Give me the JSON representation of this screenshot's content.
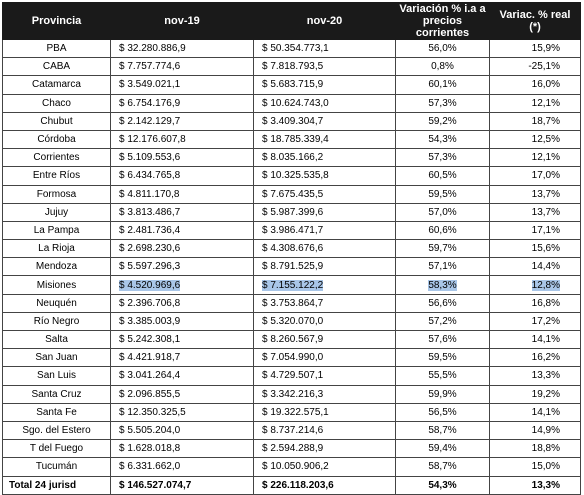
{
  "headers": [
    "Provincia",
    "nov-19",
    "nov-20",
    "Variación % i.a a precios corrientes",
    "Variac. % real (*)"
  ],
  "rows": [
    [
      "PBA",
      "$ 32.280.886,9",
      "$ 50.354.773,1",
      "56,0%",
      "15,9%"
    ],
    [
      "CABA",
      "$ 7.757.774,6",
      "$ 7.818.793,5",
      "0,8%",
      "-25,1%"
    ],
    [
      "Catamarca",
      "$ 3.549.021,1",
      "$ 5.683.715,9",
      "60,1%",
      "16,0%"
    ],
    [
      "Chaco",
      "$ 6.754.176,9",
      "$ 10.624.743,0",
      "57,3%",
      "12,1%"
    ],
    [
      "Chubut",
      "$ 2.142.129,7",
      "$ 3.409.304,7",
      "59,2%",
      "18,7%"
    ],
    [
      "Córdoba",
      "$ 12.176.607,8",
      "$ 18.785.339,4",
      "54,3%",
      "12,5%"
    ],
    [
      "Corrientes",
      "$ 5.109.553,6",
      "$ 8.035.166,2",
      "57,3%",
      "12,1%"
    ],
    [
      "Entre Ríos",
      "$ 6.434.765,8",
      "$ 10.325.535,8",
      "60,5%",
      "17,0%"
    ],
    [
      "Formosa",
      "$ 4.811.170,8",
      "$ 7.675.435,5",
      "59,5%",
      "13,7%"
    ],
    [
      "Jujuy",
      "$ 3.813.486,7",
      "$ 5.987.399,6",
      "57,0%",
      "13,7%"
    ],
    [
      "La Pampa",
      "$ 2.481.736,4",
      "$ 3.986.471,7",
      "60,6%",
      "17,1%"
    ],
    [
      "La Rioja",
      "$ 2.698.230,6",
      "$ 4.308.676,6",
      "59,7%",
      "15,6%"
    ],
    [
      "Mendoza",
      "$ 5.597.296,3",
      "$ 8.791.525,9",
      "57,1%",
      "14,4%"
    ],
    [
      "Misiones",
      "$ 4.520.969,6",
      "$ 7.155.122,2",
      "58,3%",
      "12,8%"
    ],
    [
      "Neuquén",
      "$ 2.396.706,8",
      "$ 3.753.864,7",
      "56,6%",
      "16,8%"
    ],
    [
      "Río Negro",
      "$ 3.385.003,9",
      "$ 5.320.070,0",
      "57,2%",
      "17,2%"
    ],
    [
      "Salta",
      "$ 5.242.308,1",
      "$ 8.260.567,9",
      "57,6%",
      "14,1%"
    ],
    [
      "San Juan",
      "$ 4.421.918,7",
      "$ 7.054.990,0",
      "59,5%",
      "16,2%"
    ],
    [
      "San Luis",
      "$ 3.041.264,4",
      "$ 4.729.507,1",
      "55,5%",
      "13,3%"
    ],
    [
      "Santa Cruz",
      "$ 2.096.855,5",
      "$ 3.342.216,3",
      "59,9%",
      "19,2%"
    ],
    [
      "Santa Fe",
      "$ 12.350.325,5",
      "$ 19.322.575,1",
      "56,5%",
      "14,1%"
    ],
    [
      "Sgo. del Estero",
      "$ 5.505.204,0",
      "$ 8.737.214,6",
      "58,7%",
      "14,9%"
    ],
    [
      "T del Fuego",
      "$ 1.628.018,8",
      "$ 2.594.288,9",
      "59,4%",
      "18,8%"
    ],
    [
      "Tucumán",
      "$ 6.331.662,0",
      "$ 10.050.906,2",
      "58,7%",
      "15,0%"
    ]
  ],
  "total": [
    "Total 24 jurisd",
    "$ 146.527.074,7",
    "$ 226.118.203,6",
    "54,3%",
    "13,3%"
  ],
  "highlighted_row": "Misiones"
}
